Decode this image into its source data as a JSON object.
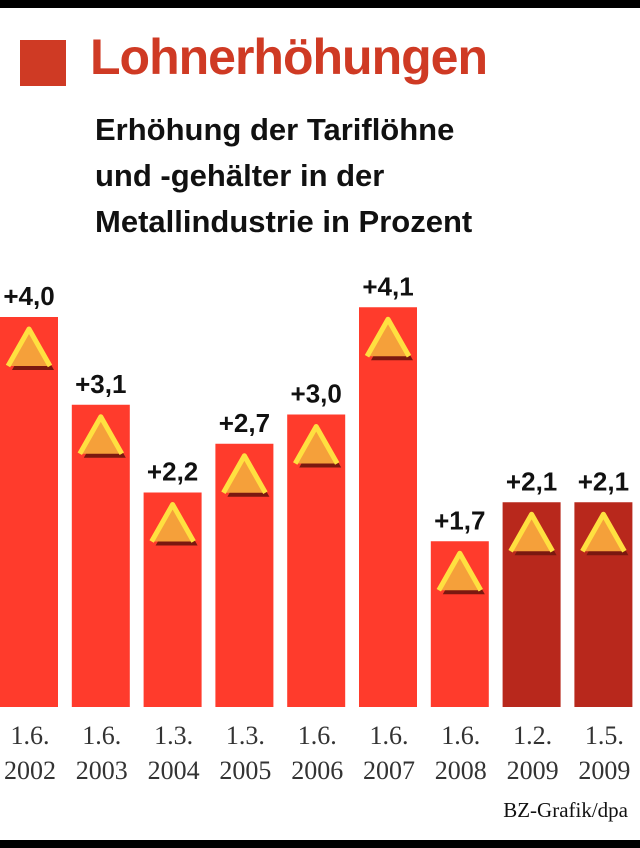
{
  "header": {
    "title": "Lohnerhöhungen",
    "subtitle_lines": [
      "Erhöhung der Tariflöhne",
      "und -gehälter in der",
      "Metallindustrie in Prozent"
    ]
  },
  "chart_data": {
    "type": "bar",
    "title": "Lohnerhöhungen",
    "subtitle": "Erhöhung der Tariflöhne und -gehälter in der Metallindustrie in Prozent",
    "categories": [
      [
        "1.6.",
        "2002"
      ],
      [
        "1.6.",
        "2003"
      ],
      [
        "1.3.",
        "2004"
      ],
      [
        "1.3.",
        "2005"
      ],
      [
        "1.6.",
        "2006"
      ],
      [
        "1.6.",
        "2007"
      ],
      [
        "1.6.",
        "2008"
      ],
      [
        "1.2.",
        "2009"
      ],
      [
        "1.5.",
        "2009"
      ]
    ],
    "values": [
      4.0,
      3.1,
      2.2,
      2.7,
      3.0,
      4.1,
      1.7,
      2.1,
      2.1
    ],
    "value_labels": [
      "+4,0",
      "+3,1",
      "+2,2",
      "+2,7",
      "+3,0",
      "+4,1",
      "+1,7",
      "+2,1",
      "+2,1"
    ],
    "xlabel": "",
    "ylabel": "",
    "ylim": [
      0,
      4.1
    ],
    "grid": false,
    "legend": "none",
    "colors": {
      "bar": "#ff3b2c",
      "bar_highlight": "#b8281c",
      "triangle_fill": "#f5a03a",
      "triangle_edge": "#ffe040",
      "triangle_shadow": "#7a1810"
    },
    "highlighted_indices": [
      7,
      8
    ],
    "marker_icon": "up-triangle-icon"
  },
  "source": "BZ-Grafik/dpa"
}
